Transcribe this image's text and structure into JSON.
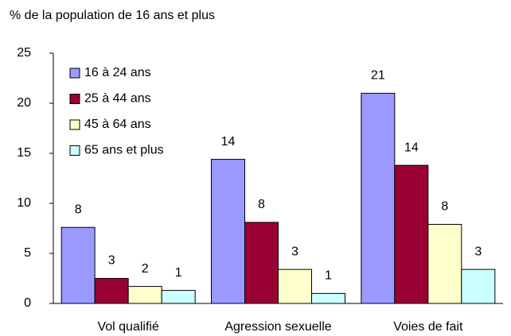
{
  "chart_data": {
    "type": "bar",
    "title": "% de la population de 16 ans et plus",
    "categories": [
      "Vol qualifié",
      "Agression sexuelle",
      "Voies de fait"
    ],
    "series": [
      {
        "name": "16 à 24 ans",
        "color": "#9999ff",
        "values": [
          7.6,
          14.4,
          21.0
        ],
        "value_labels": [
          "8",
          "14",
          "21"
        ]
      },
      {
        "name": "25 à 44 ans",
        "color": "#990033",
        "values": [
          2.5,
          8.1,
          13.8
        ],
        "value_labels": [
          "3",
          "8",
          "14"
        ]
      },
      {
        "name": "45 à 64 ans",
        "color": "#ffffcc",
        "values": [
          1.7,
          3.4,
          7.9
        ],
        "value_labels": [
          "2",
          "3",
          "8"
        ]
      },
      {
        "name": "65 ans et plus",
        "color": "#ccffff",
        "values": [
          1.3,
          1.0,
          3.4
        ],
        "value_labels": [
          "1",
          "1",
          "3"
        ]
      }
    ],
    "ylim": [
      0,
      25
    ],
    "yticks": [
      0,
      5,
      10,
      15,
      20,
      25
    ],
    "grid": false,
    "legend": "top-left"
  }
}
